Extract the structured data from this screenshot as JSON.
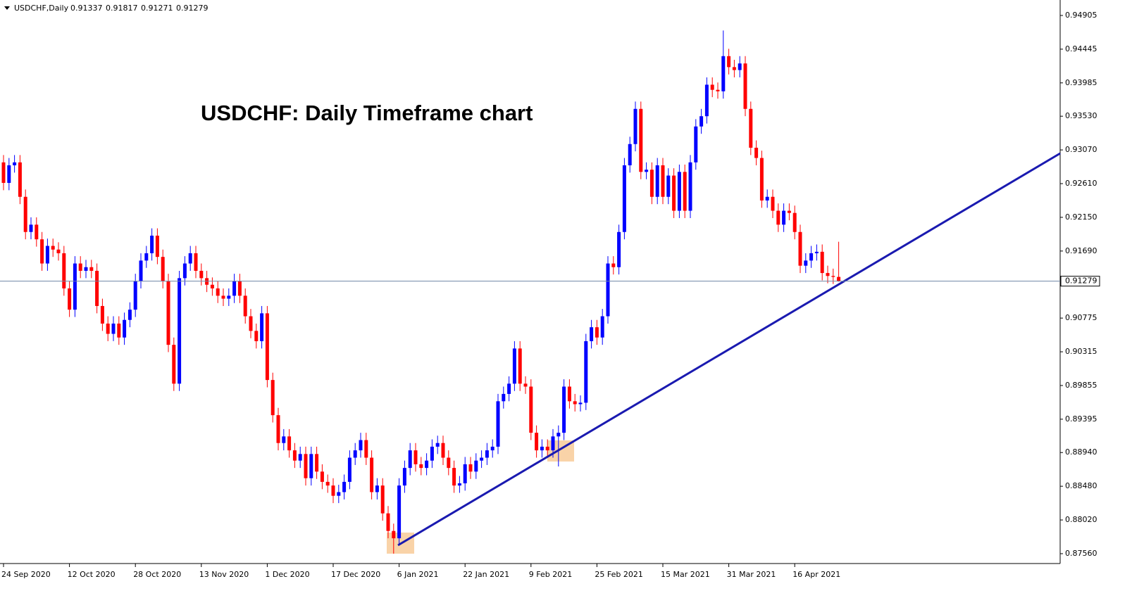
{
  "chart_data": {
    "type": "candlestick",
    "symbol": "USDCHF,Daily",
    "annotation": "USDCHF: Daily Timeframe chart",
    "up_color": "#0000ff",
    "down_color": "#ff0000",
    "ylim": [
      0.87435,
      0.95068
    ],
    "yticks": [
      0.94905,
      0.94445,
      0.93985,
      {
        "value": 0.9353,
        "label": "0.93530"
      },
      {
        "value": 0.9307,
        "label": "0.93070"
      },
      {
        "value": 0.9261,
        "label": "0.92610"
      },
      {
        "value": 0.9215,
        "label": "0.92150"
      },
      {
        "value": 0.9169,
        "label": "0.91690"
      },
      0.90775,
      0.90315,
      0.89855,
      0.89395,
      {
        "value": 0.8894,
        "label": "0.88940"
      },
      {
        "value": 0.8848,
        "label": "0.88480"
      },
      {
        "value": 0.8802,
        "label": "0.88020"
      },
      {
        "value": 0.8756,
        "label": "0.87560"
      }
    ],
    "categories": [
      "24 Sep 2020",
      null,
      null,
      null,
      null,
      null,
      null,
      null,
      null,
      null,
      null,
      null,
      "12 Oct 2020",
      null,
      null,
      null,
      null,
      null,
      null,
      null,
      null,
      null,
      null,
      null,
      "28 Oct 2020",
      null,
      null,
      null,
      null,
      null,
      null,
      null,
      null,
      null,
      null,
      null,
      "13 Nov 2020",
      null,
      null,
      null,
      null,
      null,
      null,
      null,
      null,
      null,
      null,
      null,
      "1 Dec 2020",
      null,
      null,
      null,
      null,
      null,
      null,
      null,
      null,
      null,
      null,
      null,
      "17 Dec 2020",
      null,
      null,
      null,
      null,
      null,
      null,
      null,
      null,
      null,
      null,
      null,
      "6 Jan 2021",
      null,
      null,
      null,
      null,
      null,
      null,
      null,
      null,
      null,
      null,
      null,
      "22 Jan 2021",
      null,
      null,
      null,
      null,
      null,
      null,
      null,
      null,
      null,
      null,
      null,
      "9 Feb 2021",
      null,
      null,
      null,
      null,
      null,
      null,
      null,
      null,
      null,
      null,
      null,
      "25 Feb 2021",
      null,
      null,
      null,
      null,
      null,
      null,
      null,
      null,
      null,
      null,
      null,
      "15 Mar 2021",
      null,
      null,
      null,
      null,
      null,
      null,
      null,
      null,
      null,
      null,
      null,
      "31 Mar 2021",
      null,
      null,
      null,
      null,
      null,
      null,
      null,
      null,
      null,
      null,
      null,
      "16 Apr 2021",
      null,
      null,
      null,
      null,
      null,
      null,
      null,
      null
    ],
    "open": [
      0.929,
      0.9262,
      0.9286,
      0.929,
      0.9243,
      0.9195,
      0.9205,
      0.9185,
      0.9152,
      0.9176,
      0.9171,
      0.9166,
      0.9118,
      0.9089,
      0.9152,
      0.9142,
      0.9147,
      0.9142,
      0.9094,
      0.907,
      0.9056,
      0.907,
      0.9051,
      0.9075,
      0.9089,
      0.9128,
      0.9156,
      0.9166,
      0.919,
      0.9161,
      0.9128,
      0.9041,
      0.8988,
      0.9132,
      0.9152,
      0.9166,
      0.9142,
      0.9132,
      0.9123,
      0.9118,
      0.9108,
      0.9104,
      0.9108,
      0.9128,
      0.9108,
      0.908,
      0.906,
      0.9046,
      0.9084,
      0.8993,
      0.8945,
      0.8907,
      0.8916,
      0.8897,
      0.8883,
      0.8892,
      0.8859,
      0.8892,
      0.8868,
      0.8854,
      0.8849,
      0.8835,
      0.884,
      0.8854,
      0.8887,
      0.8897,
      0.8911,
      0.8887,
      0.884,
      0.8849,
      0.8811,
      0.8787,
      0.8777,
      0.8849,
      0.8873,
      0.8897,
      0.8878,
      0.8873,
      0.8883,
      0.8902,
      0.8907,
      0.8887,
      0.8873,
      0.8849,
      0.8852,
      0.8878,
      0.8868,
      0.8883,
      0.8887,
      0.8897,
      0.8902,
      0.8964,
      0.8974,
      0.8988,
      0.9036,
      0.8988,
      0.8984,
      0.8921,
      0.8897,
      0.8902,
      0.8897,
      0.8916,
      0.8921,
      0.8984,
      0.8964,
      0.896,
      0.8962,
      0.9046,
      0.9065,
      0.9051,
      0.908,
      0.9152,
      0.9147,
      0.9195,
      0.9286,
      0.9315,
      0.9363,
      0.9277,
      0.928,
      0.9243,
      0.9286,
      0.9243,
      0.9272,
      0.9224,
      0.9277,
      0.9224,
      0.929,
      0.9339,
      0.9353,
      0.9396,
      0.9389,
      0.9387,
      0.9435,
      0.942,
      0.9416,
      0.9425,
      0.9363,
      0.931,
      0.9296,
      0.9238,
      0.9243,
      0.9224,
      0.9205,
      0.9224,
      0.9221,
      0.9195,
      0.9149,
      0.9156,
      0.9166,
      0.9168,
      0.9139,
      0.9135,
      0.91337
    ],
    "high": [
      0.93,
      0.9296,
      0.93,
      0.93,
      0.9253,
      0.9215,
      0.9215,
      0.9195,
      0.9186,
      0.9186,
      0.9181,
      0.9176,
      0.9128,
      0.9162,
      0.9162,
      0.9157,
      0.9157,
      0.9152,
      0.9104,
      0.908,
      0.908,
      0.908,
      0.9085,
      0.9099,
      0.9138,
      0.9166,
      0.9176,
      0.92,
      0.92,
      0.9171,
      0.9138,
      0.9051,
      0.9142,
      0.9162,
      0.9176,
      0.9176,
      0.9152,
      0.9142,
      0.9133,
      0.9128,
      0.9118,
      0.9118,
      0.9138,
      0.9138,
      0.9118,
      0.909,
      0.907,
      0.9094,
      0.9094,
      0.9003,
      0.8955,
      0.8926,
      0.8926,
      0.8907,
      0.8902,
      0.8902,
      0.8902,
      0.8902,
      0.8878,
      0.8864,
      0.8859,
      0.885,
      0.8864,
      0.8897,
      0.8907,
      0.8921,
      0.8921,
      0.8897,
      0.8859,
      0.8859,
      0.8821,
      0.8797,
      0.8859,
      0.8883,
      0.8907,
      0.8907,
      0.8888,
      0.8893,
      0.8912,
      0.8917,
      0.8917,
      0.8897,
      0.8883,
      0.8862,
      0.8888,
      0.8888,
      0.8893,
      0.8897,
      0.8907,
      0.8912,
      0.8974,
      0.8984,
      0.8998,
      0.9046,
      0.9046,
      0.8998,
      0.8994,
      0.8931,
      0.8912,
      0.8912,
      0.8926,
      0.8931,
      0.8994,
      0.8994,
      0.8974,
      0.8972,
      0.9056,
      0.9075,
      0.9075,
      0.909,
      0.9162,
      0.9162,
      0.9205,
      0.9296,
      0.9325,
      0.9373,
      0.9373,
      0.929,
      0.929,
      0.9296,
      0.9296,
      0.9282,
      0.9282,
      0.9287,
      0.9287,
      0.93,
      0.9349,
      0.9363,
      0.9406,
      0.9406,
      0.9399,
      0.947,
      0.9445,
      0.943,
      0.9435,
      0.9435,
      0.9373,
      0.932,
      0.9306,
      0.9253,
      0.9253,
      0.9234,
      0.9234,
      0.9234,
      0.9231,
      0.9205,
      0.9166,
      0.9176,
      0.9178,
      0.9178,
      0.9149,
      0.9145,
      0.91817
    ],
    "low": [
      0.9252,
      0.9252,
      0.9276,
      0.9233,
      0.9185,
      0.9185,
      0.9175,
      0.9142,
      0.9142,
      0.9161,
      0.9156,
      0.9108,
      0.9079,
      0.9079,
      0.9132,
      0.9132,
      0.9132,
      0.9084,
      0.906,
      0.9046,
      0.9046,
      0.9041,
      0.9041,
      0.9065,
      0.9079,
      0.9118,
      0.9146,
      0.9156,
      0.9151,
      0.9118,
      0.9031,
      0.8978,
      0.8978,
      0.9122,
      0.9142,
      0.9132,
      0.9122,
      0.9113,
      0.9108,
      0.9098,
      0.9094,
      0.9094,
      0.9098,
      0.9098,
      0.907,
      0.905,
      0.9036,
      0.9036,
      0.8983,
      0.8935,
      0.8897,
      0.8897,
      0.8887,
      0.8873,
      0.8873,
      0.8849,
      0.8849,
      0.8858,
      0.8844,
      0.8839,
      0.8825,
      0.8825,
      0.883,
      0.8844,
      0.8877,
      0.8887,
      0.8877,
      0.883,
      0.883,
      0.8801,
      0.8777,
      0.8756,
      0.8767,
      0.8839,
      0.8863,
      0.8868,
      0.8863,
      0.8863,
      0.8873,
      0.8892,
      0.8877,
      0.8863,
      0.8839,
      0.8839,
      0.8842,
      0.8858,
      0.8858,
      0.8873,
      0.8877,
      0.8887,
      0.8892,
      0.8954,
      0.8964,
      0.8978,
      0.8978,
      0.8974,
      0.8911,
      0.8887,
      0.8887,
      0.8887,
      0.8887,
      0.8875,
      0.8911,
      0.8954,
      0.895,
      0.895,
      0.8952,
      0.9036,
      0.9041,
      0.9041,
      0.907,
      0.9137,
      0.9137,
      0.9185,
      0.9276,
      0.9305,
      0.9267,
      0.9267,
      0.9233,
      0.9233,
      0.9233,
      0.9233,
      0.9214,
      0.9214,
      0.9214,
      0.9214,
      0.928,
      0.9329,
      0.9343,
      0.9379,
      0.9377,
      0.9377,
      0.941,
      0.9406,
      0.9406,
      0.9353,
      0.93,
      0.9286,
      0.9228,
      0.9228,
      0.9214,
      0.9195,
      0.9195,
      0.9211,
      0.9185,
      0.9139,
      0.9139,
      0.9146,
      0.9156,
      0.9129,
      0.9125,
      0.9124,
      0.91271
    ],
    "close": [
      0.9262,
      0.9286,
      0.929,
      0.9243,
      0.9195,
      0.9205,
      0.9185,
      0.9152,
      0.9176,
      0.9171,
      0.9166,
      0.9118,
      0.9089,
      0.9152,
      0.9142,
      0.9147,
      0.9142,
      0.9094,
      0.907,
      0.9056,
      0.907,
      0.9051,
      0.9075,
      0.9089,
      0.9128,
      0.9156,
      0.9166,
      0.919,
      0.9161,
      0.9128,
      0.9041,
      0.8988,
      0.9132,
      0.9152,
      0.9166,
      0.9142,
      0.9132,
      0.9123,
      0.9118,
      0.9108,
      0.9104,
      0.9108,
      0.9128,
      0.9108,
      0.908,
      0.906,
      0.9046,
      0.9084,
      0.8993,
      0.8945,
      0.8907,
      0.8916,
      0.8897,
      0.8883,
      0.8892,
      0.8859,
      0.8892,
      0.8868,
      0.8854,
      0.8849,
      0.8835,
      0.884,
      0.8854,
      0.8887,
      0.8897,
      0.8911,
      0.8887,
      0.884,
      0.8849,
      0.8811,
      0.8787,
      0.8777,
      0.8849,
      0.8873,
      0.8897,
      0.8878,
      0.8873,
      0.8883,
      0.8902,
      0.8907,
      0.8887,
      0.8873,
      0.8849,
      0.8852,
      0.8878,
      0.8868,
      0.8883,
      0.8887,
      0.8897,
      0.8902,
      0.8964,
      0.8974,
      0.8988,
      0.9036,
      0.8988,
      0.8984,
      0.8921,
      0.8897,
      0.8902,
      0.8897,
      0.8916,
      0.8921,
      0.8984,
      0.8964,
      0.896,
      0.8962,
      0.9046,
      0.9065,
      0.9051,
      0.908,
      0.9152,
      0.9147,
      0.9195,
      0.9286,
      0.9315,
      0.9363,
      0.9277,
      0.928,
      0.9243,
      0.9286,
      0.9243,
      0.9272,
      0.9224,
      0.9277,
      0.9224,
      0.929,
      0.9339,
      0.9353,
      0.9396,
      0.9389,
      0.9387,
      0.9435,
      0.942,
      0.9416,
      0.9425,
      0.9363,
      0.931,
      0.9296,
      0.9238,
      0.9243,
      0.9224,
      0.9205,
      0.9224,
      0.9221,
      0.9195,
      0.9149,
      0.9156,
      0.9166,
      0.9168,
      0.9139,
      0.9135,
      0.91337,
      0.91279
    ]
  }
}
